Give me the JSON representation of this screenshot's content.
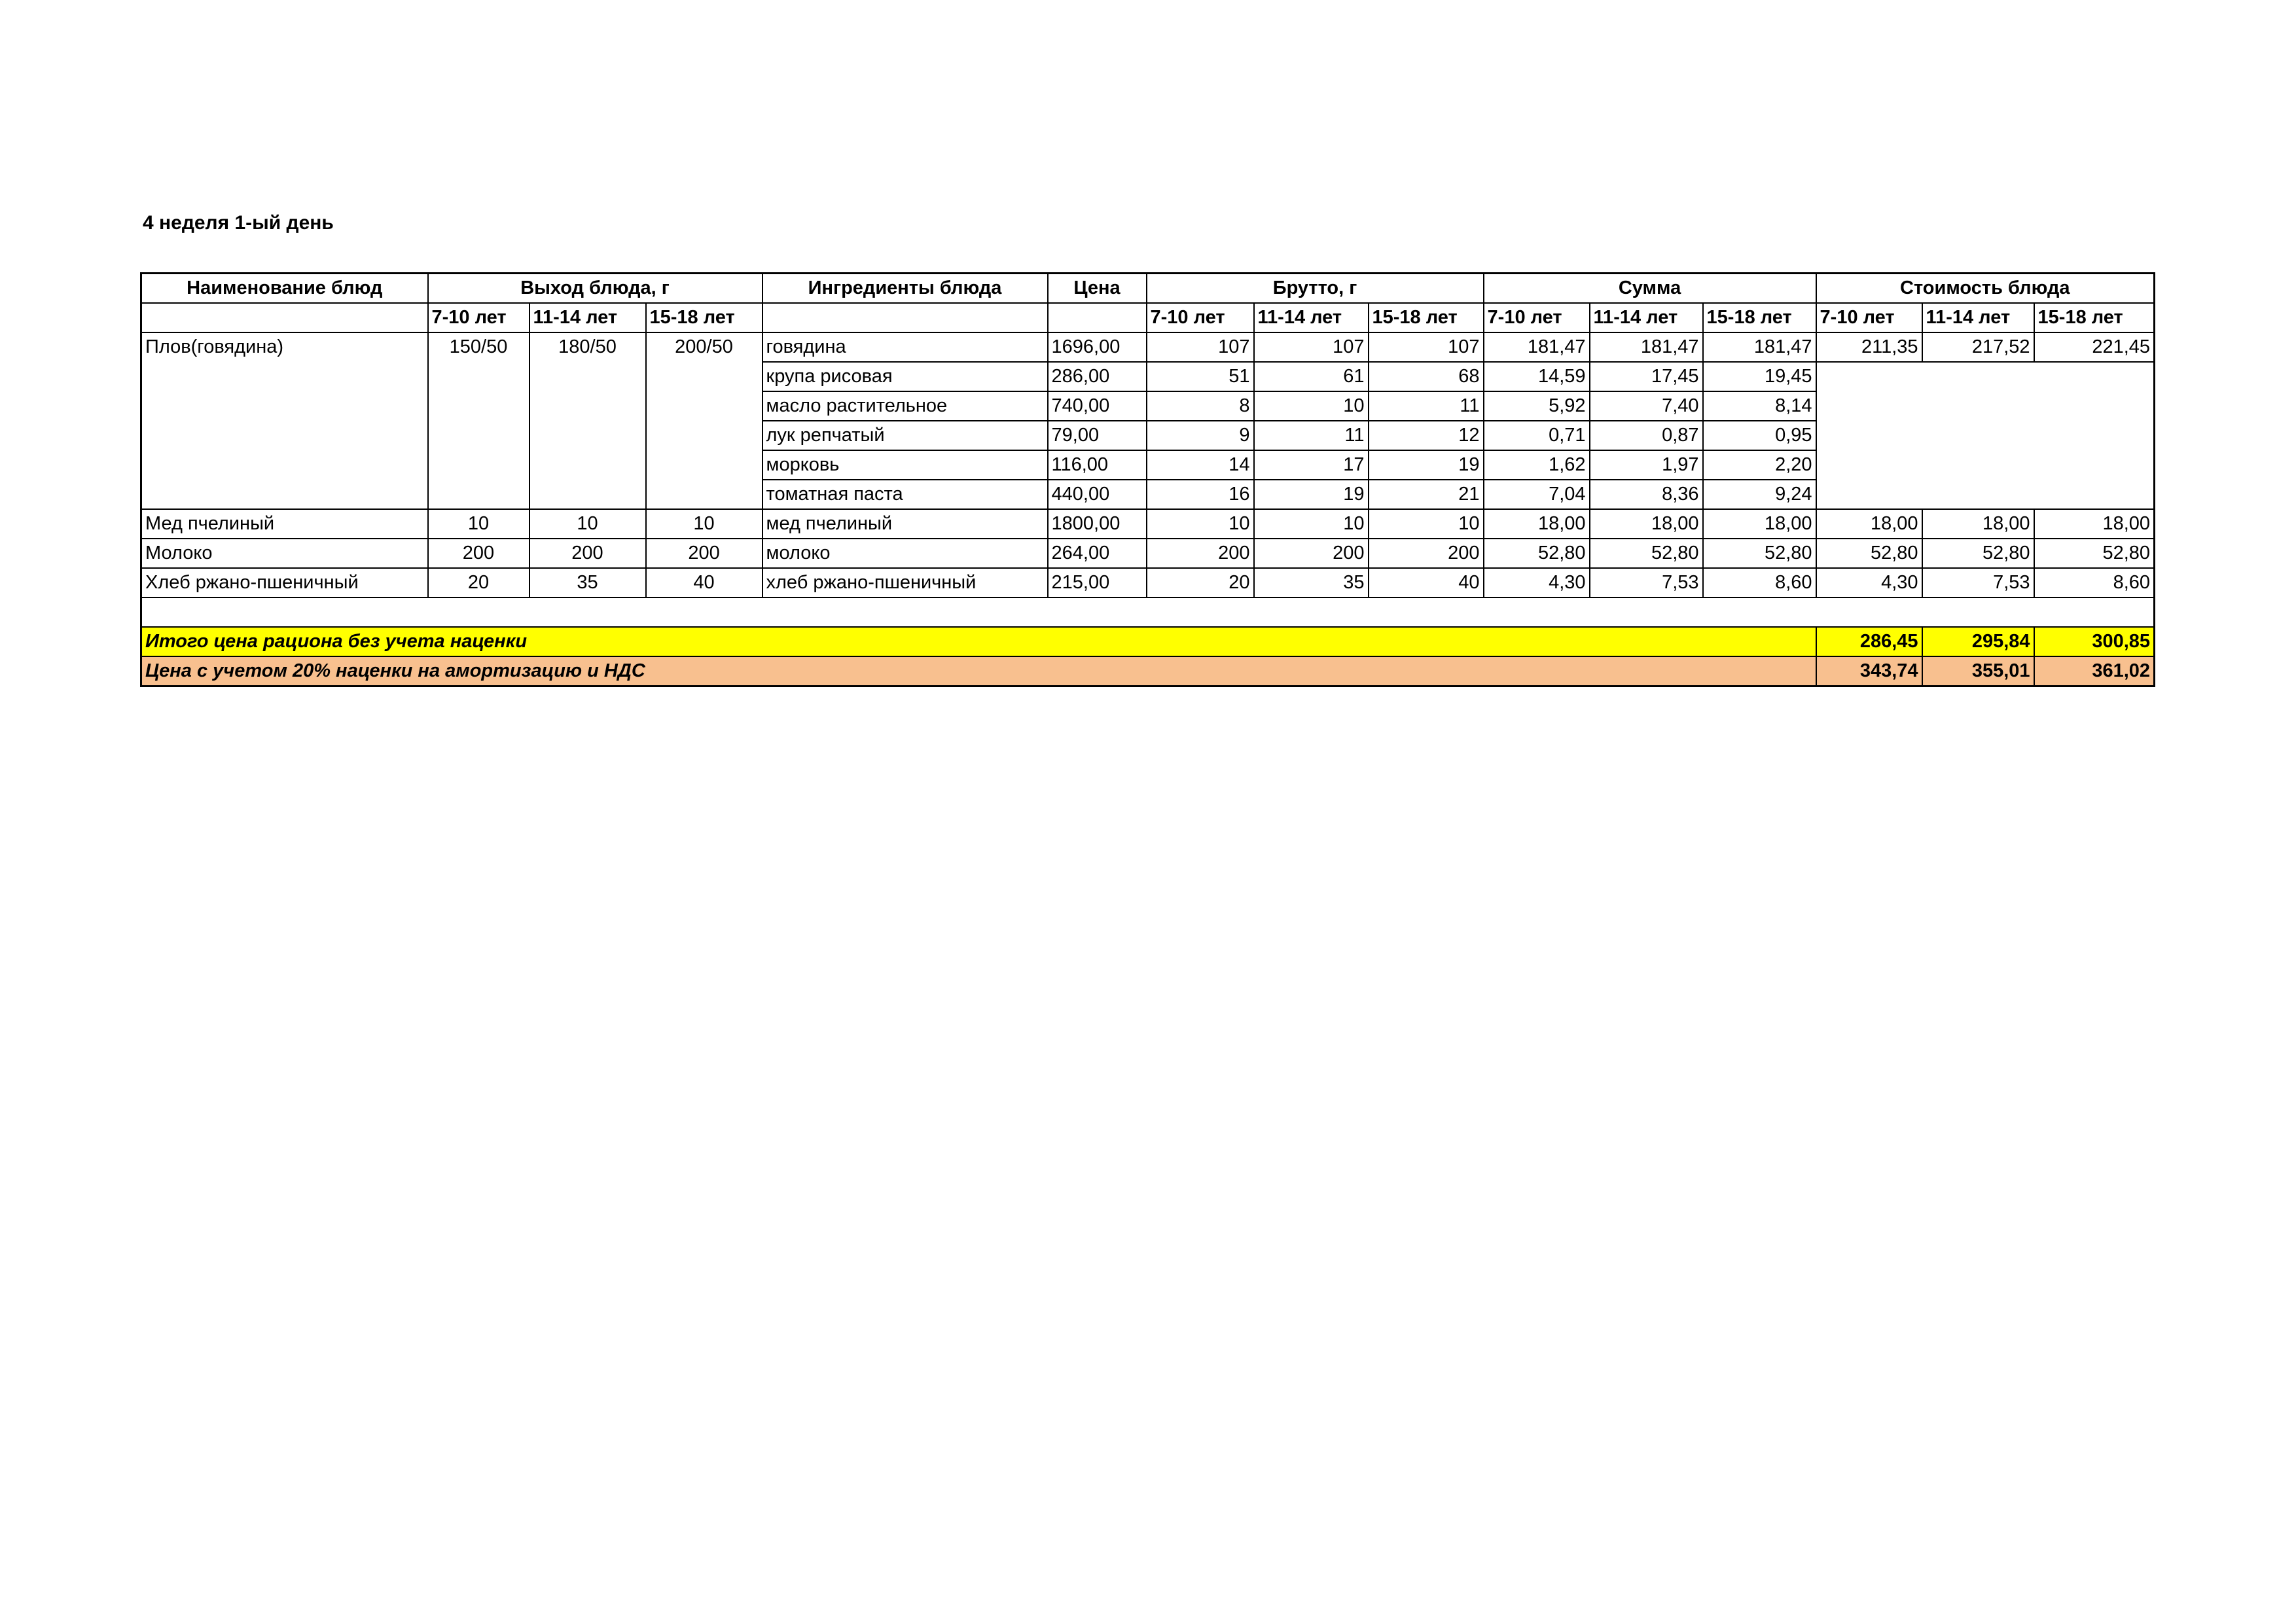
{
  "title": "4 неделя 1-ый день",
  "headers": {
    "dish": "Наименование блюд",
    "yield": "Выход блюда, г",
    "ingredients": "Ингредиенты блюда",
    "price": "Цена",
    "brutto": "Брутто, г",
    "sum": "Сумма",
    "cost": "Стоимость блюда",
    "ages": [
      "7-10 лет",
      "11-14 лет",
      "15-18 лет"
    ]
  },
  "dishes": [
    {
      "name": "Плов(говядина)",
      "yield": [
        "150/50",
        "180/50",
        "200/50"
      ],
      "cost": [
        "211,35",
        "217,52",
        "221,45"
      ],
      "ingredients": [
        {
          "name": "говядина",
          "price": "1696,00",
          "brutto": [
            "107",
            "107",
            "107"
          ],
          "sum": [
            "181,47",
            "181,47",
            "181,47"
          ]
        },
        {
          "name": "крупа рисовая",
          "price": "286,00",
          "brutto": [
            "51",
            "61",
            "68"
          ],
          "sum": [
            "14,59",
            "17,45",
            "19,45"
          ]
        },
        {
          "name": "масло растительное",
          "price": "740,00",
          "brutto": [
            "8",
            "10",
            "11"
          ],
          "sum": [
            "5,92",
            "7,40",
            "8,14"
          ]
        },
        {
          "name": "лук репчатый",
          "price": "79,00",
          "brutto": [
            "9",
            "11",
            "12"
          ],
          "sum": [
            "0,71",
            "0,87",
            "0,95"
          ]
        },
        {
          "name": "морковь",
          "price": "116,00",
          "brutto": [
            "14",
            "17",
            "19"
          ],
          "sum": [
            "1,62",
            "1,97",
            "2,20"
          ]
        },
        {
          "name": "томатная паста",
          "price": "440,00",
          "brutto": [
            "16",
            "19",
            "21"
          ],
          "sum": [
            "7,04",
            "8,36",
            "9,24"
          ]
        }
      ]
    },
    {
      "name": "Мед пчелиный",
      "yield": [
        "10",
        "10",
        "10"
      ],
      "cost": [
        "18,00",
        "18,00",
        "18,00"
      ],
      "ingredients": [
        {
          "name": "мед пчелиный",
          "price": "1800,00",
          "brutto": [
            "10",
            "10",
            "10"
          ],
          "sum": [
            "18,00",
            "18,00",
            "18,00"
          ]
        }
      ]
    },
    {
      "name": "Молоко",
      "yield": [
        "200",
        "200",
        "200"
      ],
      "cost": [
        "52,80",
        "52,80",
        "52,80"
      ],
      "ingredients": [
        {
          "name": "молоко",
          "price": "264,00",
          "brutto": [
            "200",
            "200",
            "200"
          ],
          "sum": [
            "52,80",
            "52,80",
            "52,80"
          ]
        }
      ]
    },
    {
      "name": "Хлеб ржано-пшеничный",
      "yield": [
        "20",
        "35",
        "40"
      ],
      "cost": [
        "4,30",
        "7,53",
        "8,60"
      ],
      "ingredients": [
        {
          "name": "хлеб ржано-пшеничный",
          "price": "215,00",
          "brutto": [
            "20",
            "35",
            "40"
          ],
          "sum": [
            "4,30",
            "7,53",
            "8,60"
          ]
        }
      ]
    }
  ],
  "totals": {
    "label": "Итого цена рациона без учета наценки",
    "values": [
      "286,45",
      "295,84",
      "300,85"
    ]
  },
  "markup": {
    "label": "Цена с учетом 20% наценки на амортизацию и НДС",
    "values": [
      "343,74",
      "355,01",
      "361,02"
    ]
  },
  "colors": {
    "totals_bg": "#ffff00",
    "markup_bg": "#f8c08f"
  }
}
